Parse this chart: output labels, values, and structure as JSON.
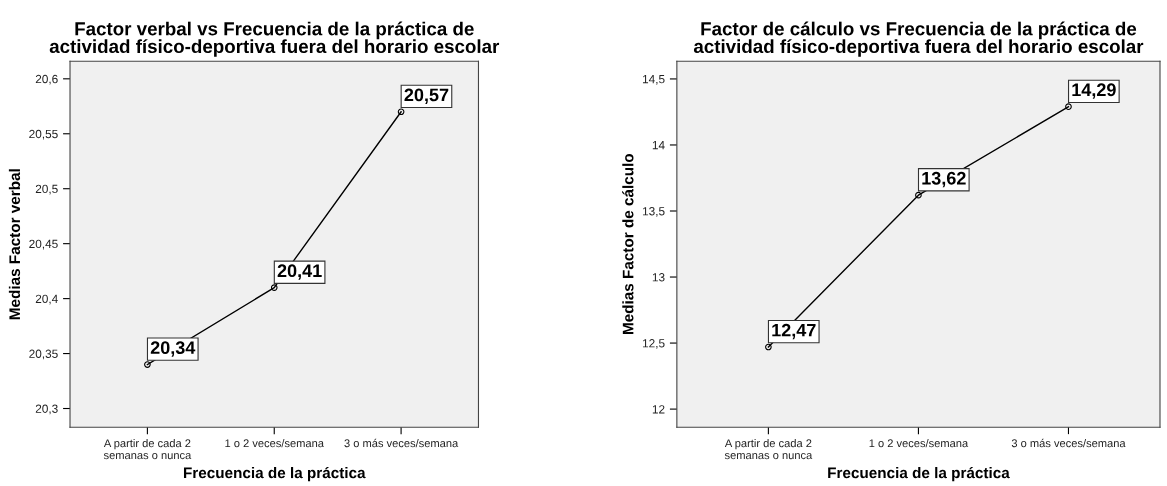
{
  "chart_data": [
    {
      "type": "line",
      "title": "Factor verbal vs Frecuencia de la práctica de\nactividad físico-deportiva fuera del horario escolar",
      "xlabel": "Frecuencia de la práctica",
      "ylabel": "Medias Factor verbal",
      "categories": [
        "A partir de cada 2\nsemanas o nunca",
        "1 o 2 veces/semana",
        "3 o más veces/semana"
      ],
      "series": [
        {
          "color": "#000000",
          "values": [
            20.34,
            20.41,
            20.57
          ],
          "value_labels": [
            "20,34",
            "20,41",
            "20,57"
          ]
        }
      ],
      "ylim": [
        20.283,
        20.616
      ],
      "yticks": [
        {
          "value": 20.3,
          "label": "20,3"
        },
        {
          "value": 20.35,
          "label": "20,35"
        },
        {
          "value": 20.4,
          "label": "20,4"
        },
        {
          "value": 20.45,
          "label": "20,45"
        },
        {
          "value": 20.5,
          "label": "20,5"
        },
        {
          "value": 20.55,
          "label": "20,55"
        },
        {
          "value": 20.6,
          "label": "20,6"
        }
      ],
      "grid": false,
      "legend": false,
      "marker": "circle",
      "line_style": "solid"
    },
    {
      "type": "line",
      "title": "Factor de cálculo vs Frecuencia de la práctica de\nactividad físico-deportiva fuera del horario escolar",
      "xlabel": "Frecuencia de la práctica",
      "ylabel": "Medias Factor de cálculo",
      "categories": [
        "A partir de cada 2\nsemanas o nunca",
        "1 o 2 veces/semana",
        "3 o más veces/semana"
      ],
      "series": [
        {
          "color": "#000000",
          "values": [
            12.47,
            13.62,
            14.29
          ],
          "value_labels": [
            "12,47",
            "13,62",
            "14,29"
          ]
        }
      ],
      "ylim": [
        11.863,
        14.634
      ],
      "yticks": [
        12,
        {
          "value": 12.5,
          "label": "12,5"
        },
        13,
        {
          "value": 13.5,
          "label": "13,5"
        },
        14,
        {
          "value": 14.5,
          "label": "14,5"
        }
      ],
      "grid": false,
      "legend": false,
      "marker": "circle",
      "line_style": "solid"
    }
  ]
}
